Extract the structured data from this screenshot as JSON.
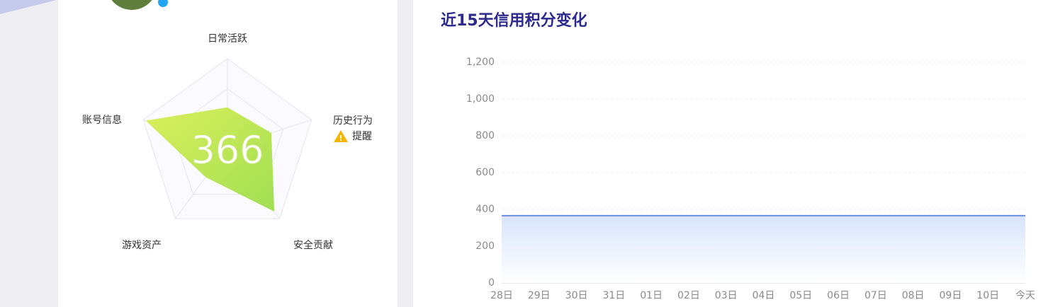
{
  "chart_data": [
    {
      "type": "radar",
      "categories": [
        "日常活跃",
        "历史行为",
        "安全贡献",
        "游戏资产",
        "账号信息"
      ],
      "values": [
        45,
        52,
        90,
        42,
        97
      ],
      "ylim": [
        0,
        100
      ],
      "color": "#b4e455",
      "score": 366,
      "alert": "提醒"
    },
    {
      "type": "area",
      "title": "近15天信用积分变化",
      "categories": [
        "28日",
        "29日",
        "30日",
        "31日",
        "01日",
        "02日",
        "03日",
        "04日",
        "05日",
        "06日",
        "07日",
        "08日",
        "09日",
        "10日",
        "今天"
      ],
      "values": [
        366,
        366,
        366,
        366,
        366,
        366,
        366,
        366,
        366,
        366,
        366,
        366,
        366,
        366,
        366
      ],
      "color": "#6b8fe6",
      "ylim": [
        0,
        1200
      ],
      "yticks": [
        0,
        200,
        400,
        600,
        800,
        {
          "value": 1000,
          "label": "1,000"
        },
        {
          "value": 1200,
          "label": "1,200"
        }
      ],
      "grid": true
    }
  ]
}
